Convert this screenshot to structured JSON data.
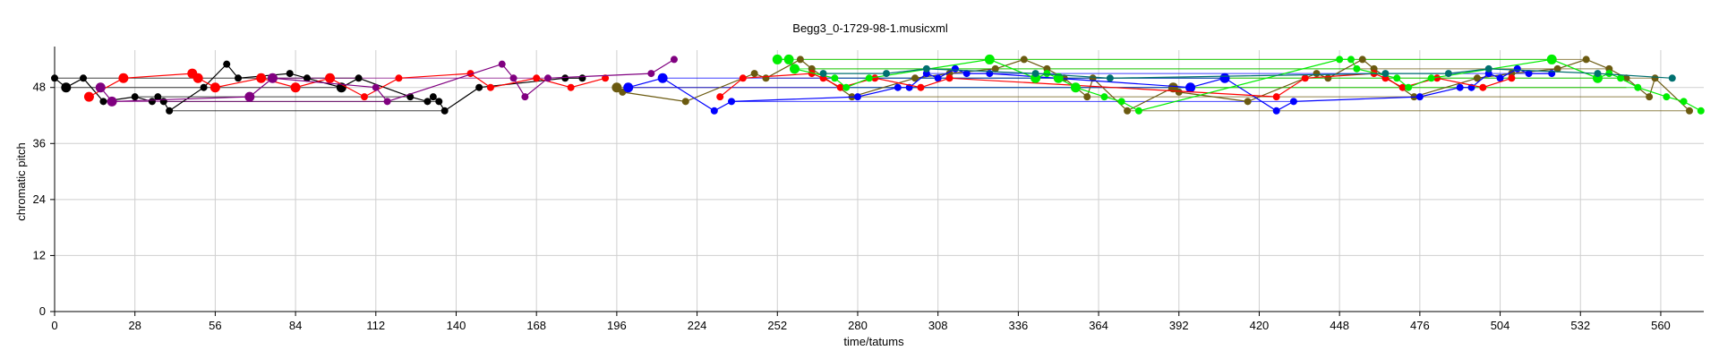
{
  "chart_data": {
    "type": "scatter",
    "title": "Begg3_0-1729-98-1.musicxml",
    "xlabel": "time/tatums",
    "ylabel": "chromatic pitch",
    "xlim": [
      0,
      575
    ],
    "ylim": [
      0,
      56
    ],
    "xticks": [
      0,
      28,
      56,
      84,
      112,
      140,
      168,
      196,
      224,
      252,
      280,
      308,
      336,
      364,
      392,
      420,
      448,
      476,
      504,
      532,
      560
    ],
    "yticks": [
      0,
      12,
      24,
      36,
      48
    ],
    "grid": true,
    "colors": {
      "black": "#000000",
      "red": "#ff0000",
      "purple": "#800080",
      "olive": "#6b5a10",
      "blue": "#0000ff",
      "green": "#00ee00",
      "teal": "#007070",
      "gray": "#808080"
    },
    "series": [
      {
        "color": "black",
        "points": [
          [
            0,
            50,
            1
          ],
          [
            4,
            48,
            2
          ],
          [
            10,
            50,
            1
          ],
          [
            17,
            45,
            1
          ],
          [
            28,
            46,
            1
          ],
          [
            34,
            45,
            1
          ],
          [
            36,
            46,
            1
          ],
          [
            38,
            45,
            1
          ],
          [
            40,
            43,
            1
          ],
          [
            52,
            48,
            1
          ],
          [
            60,
            53,
            1
          ],
          [
            64,
            50,
            1
          ],
          [
            82,
            51,
            1
          ],
          [
            88,
            50,
            1
          ],
          [
            100,
            48,
            2
          ],
          [
            106,
            50,
            1
          ],
          [
            124,
            46,
            1
          ],
          [
            130,
            45,
            1
          ],
          [
            132,
            46,
            1
          ],
          [
            134,
            45,
            1
          ],
          [
            136,
            43,
            1
          ],
          [
            148,
            48,
            1
          ],
          [
            178,
            50,
            1
          ],
          [
            184,
            50,
            1
          ]
        ]
      },
      {
        "color": "red",
        "points": [
          [
            12,
            46,
            2
          ],
          [
            24,
            50,
            2
          ],
          [
            48,
            51,
            2
          ],
          [
            50,
            50,
            2
          ],
          [
            56,
            48,
            2
          ],
          [
            72,
            50,
            2
          ],
          [
            84,
            48,
            2
          ],
          [
            96,
            50,
            2
          ],
          [
            108,
            46,
            1
          ],
          [
            120,
            50,
            1
          ],
          [
            145,
            51,
            1
          ],
          [
            152,
            48,
            1
          ],
          [
            168,
            50,
            1
          ],
          [
            180,
            48,
            1
          ],
          [
            192,
            50,
            1
          ]
        ]
      },
      {
        "color": "purple",
        "points": [
          [
            16,
            48,
            2
          ],
          [
            20,
            45,
            2
          ],
          [
            68,
            46,
            2
          ],
          [
            76,
            50,
            2
          ],
          [
            112,
            48,
            1
          ],
          [
            116,
            45,
            1
          ],
          [
            156,
            53,
            1
          ],
          [
            160,
            50,
            1
          ],
          [
            164,
            46,
            1
          ],
          [
            172,
            50,
            1
          ],
          [
            208,
            51,
            1
          ],
          [
            216,
            54,
            1
          ]
        ]
      },
      {
        "color": "olive",
        "points": [
          [
            196,
            48,
            2
          ],
          [
            198,
            47,
            1
          ],
          [
            220,
            45,
            1
          ],
          [
            244,
            51,
            1
          ],
          [
            248,
            50,
            1
          ],
          [
            260,
            54,
            1
          ],
          [
            264,
            52,
            1
          ],
          [
            278,
            46,
            1
          ],
          [
            300,
            50,
            1
          ],
          [
            312,
            51,
            1
          ],
          [
            328,
            52,
            1
          ],
          [
            338,
            54,
            1
          ],
          [
            346,
            52,
            1
          ],
          [
            352,
            50,
            1
          ],
          [
            360,
            46,
            1
          ],
          [
            362,
            50,
            1
          ],
          [
            374,
            43,
            1
          ],
          [
            390,
            48,
            2
          ],
          [
            392,
            47,
            1
          ],
          [
            416,
            45,
            1
          ],
          [
            440,
            51,
            1
          ],
          [
            444,
            50,
            1
          ],
          [
            456,
            54,
            1
          ],
          [
            460,
            52,
            1
          ],
          [
            474,
            46,
            1
          ],
          [
            496,
            50,
            1
          ],
          [
            508,
            51,
            1
          ],
          [
            524,
            52,
            1
          ],
          [
            534,
            54,
            1
          ],
          [
            542,
            52,
            1
          ],
          [
            548,
            50,
            1
          ],
          [
            556,
            46,
            1
          ],
          [
            558,
            50,
            1
          ],
          [
            570,
            43,
            1
          ]
        ]
      },
      {
        "color": "blue",
        "points": [
          [
            200,
            48,
            2
          ],
          [
            212,
            50,
            2
          ],
          [
            230,
            43,
            1
          ],
          [
            236,
            45,
            1
          ],
          [
            280,
            46,
            1
          ],
          [
            294,
            48,
            1
          ],
          [
            298,
            48,
            1
          ],
          [
            304,
            51,
            1
          ],
          [
            308,
            50,
            1
          ],
          [
            314,
            52,
            1
          ],
          [
            318,
            51,
            1
          ],
          [
            326,
            51,
            1
          ],
          [
            396,
            48,
            2
          ],
          [
            408,
            50,
            2
          ],
          [
            426,
            43,
            1
          ],
          [
            432,
            45,
            1
          ],
          [
            476,
            46,
            1
          ],
          [
            490,
            48,
            1
          ],
          [
            494,
            48,
            1
          ],
          [
            500,
            51,
            1
          ],
          [
            504,
            50,
            1
          ],
          [
            510,
            52,
            1
          ],
          [
            514,
            51,
            1
          ],
          [
            522,
            51,
            1
          ]
        ]
      },
      {
        "color": "red",
        "points": [
          [
            232,
            46,
            1
          ],
          [
            240,
            50,
            1
          ],
          [
            264,
            51,
            1
          ],
          [
            268,
            50,
            1
          ],
          [
            274,
            48,
            1
          ],
          [
            286,
            50,
            1
          ],
          [
            302,
            48,
            1
          ],
          [
            312,
            50,
            1
          ],
          [
            426,
            46,
            1
          ],
          [
            436,
            50,
            1
          ],
          [
            460,
            51,
            1
          ],
          [
            464,
            50,
            1
          ],
          [
            470,
            48,
            1
          ],
          [
            482,
            50,
            1
          ],
          [
            498,
            48,
            1
          ],
          [
            508,
            50,
            1
          ]
        ]
      },
      {
        "color": "green",
        "points": [
          [
            252,
            54,
            2
          ],
          [
            256,
            54,
            2
          ],
          [
            258,
            52,
            2
          ],
          [
            272,
            50,
            1
          ],
          [
            276,
            48,
            1
          ],
          [
            284,
            50,
            1
          ],
          [
            326,
            54,
            2
          ],
          [
            342,
            50,
            2
          ],
          [
            346,
            51,
            1
          ],
          [
            350,
            50,
            2
          ],
          [
            356,
            48,
            2
          ],
          [
            366,
            46,
            1
          ],
          [
            372,
            45,
            1
          ],
          [
            378,
            43,
            1
          ],
          [
            448,
            54,
            1
          ],
          [
            452,
            54,
            1
          ],
          [
            454,
            52,
            1
          ],
          [
            468,
            50,
            1
          ],
          [
            472,
            48,
            1
          ],
          [
            480,
            50,
            1
          ],
          [
            522,
            54,
            2
          ],
          [
            538,
            50,
            2
          ],
          [
            542,
            51,
            1
          ],
          [
            546,
            50,
            1
          ],
          [
            552,
            48,
            1
          ],
          [
            562,
            46,
            1
          ],
          [
            568,
            45,
            1
          ],
          [
            574,
            43,
            1
          ]
        ]
      },
      {
        "color": "teal",
        "points": [
          [
            268,
            51,
            1
          ],
          [
            290,
            51,
            1
          ],
          [
            304,
            52,
            1
          ],
          [
            342,
            51,
            1
          ],
          [
            368,
            50,
            1
          ],
          [
            464,
            51,
            1
          ],
          [
            486,
            51,
            1
          ],
          [
            500,
            52,
            1
          ],
          [
            538,
            51,
            1
          ],
          [
            564,
            50,
            1
          ]
        ]
      }
    ],
    "sustain_lines": [
      {
        "color": "black",
        "y": 50,
        "x": [
          0,
          106
        ]
      },
      {
        "color": "black",
        "y": 48,
        "x": [
          4,
          100
        ]
      },
      {
        "color": "black",
        "y": 46,
        "x": [
          28,
          124
        ]
      },
      {
        "color": "black",
        "y": 45,
        "x": [
          38,
          134
        ]
      },
      {
        "color": "black",
        "y": 43,
        "x": [
          40,
          136
        ]
      },
      {
        "color": "olive",
        "y": 54,
        "x": [
          260,
          534
        ]
      },
      {
        "color": "olive",
        "y": 52,
        "x": [
          264,
          542
        ]
      },
      {
        "color": "olive",
        "y": 50,
        "x": [
          248,
          558
        ]
      },
      {
        "color": "olive",
        "y": 48,
        "x": [
          196,
          548
        ]
      },
      {
        "color": "olive",
        "y": 46,
        "x": [
          278,
          556
        ]
      },
      {
        "color": "olive",
        "y": 43,
        "x": [
          374,
          570
        ]
      },
      {
        "color": "green",
        "y": 54,
        "x": [
          252,
          522
        ]
      },
      {
        "color": "green",
        "y": 52,
        "x": [
          258,
          454
        ]
      },
      {
        "color": "green",
        "y": 50,
        "x": [
          272,
          546
        ]
      },
      {
        "color": "green",
        "y": 48,
        "x": [
          276,
          552
        ]
      },
      {
        "color": "blue",
        "y": 50,
        "x": [
          212,
          408
        ]
      },
      {
        "color": "blue",
        "y": 51,
        "x": [
          304,
          522
        ]
      },
      {
        "color": "blue",
        "y": 48,
        "x": [
          200,
          396
        ]
      },
      {
        "color": "blue",
        "y": 45,
        "x": [
          236,
          432
        ]
      },
      {
        "color": "purple",
        "y": 50,
        "x": [
          76,
          172
        ]
      },
      {
        "color": "purple",
        "y": 45,
        "x": [
          20,
          116
        ]
      }
    ]
  }
}
